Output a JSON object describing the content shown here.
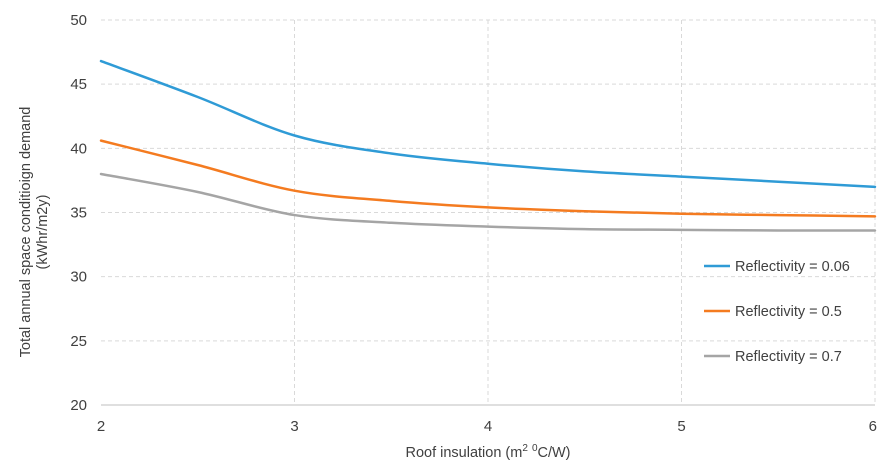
{
  "chart_data": {
    "type": "line",
    "title": "",
    "xlabel_main": "Roof insulation (m",
    "xlabel_sup1": "2",
    "xlabel_mid": " ",
    "xlabel_sup2": "0",
    "xlabel_end": "C/W)",
    "ylabel_line1": "Total annual space conditioign demand",
    "ylabel_line2": "(kWhr/m2y)",
    "xlim": [
      2,
      6
    ],
    "ylim": [
      20,
      50
    ],
    "x_ticks": [
      "2",
      "3",
      "4",
      "5",
      "6"
    ],
    "y_ticks": [
      "20",
      "25",
      "30",
      "35",
      "40",
      "45",
      "50"
    ],
    "grid": "dashed",
    "legend_position": "right",
    "series": [
      {
        "name": "Reflectivity = 0.06",
        "color": "#2f9bd6",
        "x": [
          2,
          2.5,
          3,
          3.5,
          4,
          4.5,
          5,
          5.5,
          6
        ],
        "y": [
          46.8,
          44.0,
          41.0,
          39.6,
          38.8,
          38.2,
          37.8,
          37.4,
          37.0
        ]
      },
      {
        "name": "Reflectivity = 0.5",
        "color": "#f47b20",
        "x": [
          2,
          2.5,
          3,
          3.5,
          4,
          4.5,
          5,
          5.5,
          6
        ],
        "y": [
          40.6,
          38.7,
          36.7,
          35.9,
          35.4,
          35.1,
          34.9,
          34.8,
          34.7
        ]
      },
      {
        "name": "Reflectivity = 0.7",
        "color": "#a5a5a5",
        "x": [
          2,
          2.5,
          3,
          3.5,
          4,
          4.5,
          5,
          5.5,
          6
        ],
        "y": [
          38.0,
          36.6,
          34.8,
          34.2,
          33.9,
          33.7,
          33.65,
          33.6,
          33.6
        ]
      }
    ]
  }
}
